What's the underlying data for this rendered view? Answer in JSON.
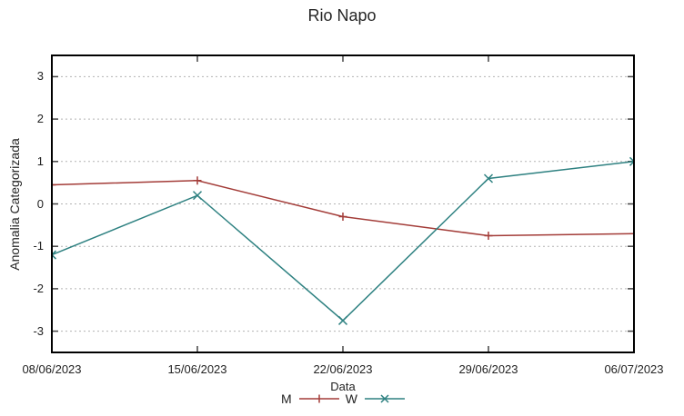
{
  "title": "Rio Napo",
  "chart_data": {
    "type": "line",
    "title": "Rio Napo",
    "xlabel": "Data",
    "ylabel": "Anomalia Categorizada",
    "x": [
      "08/06/2023",
      "15/06/2023",
      "22/06/2023",
      "29/06/2023",
      "06/07/2023"
    ],
    "ylim": [
      -3.5,
      3.5
    ],
    "yticks": [
      3,
      2,
      1,
      0,
      -1,
      -2,
      -3
    ],
    "grid": "horizontal dashed gridlines at integer y values",
    "legend_position": "bottom-center",
    "series": [
      {
        "name": "M",
        "marker": "plus",
        "color": "#a33c38",
        "values": [
          0.45,
          0.55,
          -0.3,
          -0.75,
          -0.7
        ]
      },
      {
        "name": "W",
        "marker": "cross",
        "color": "#2e8181",
        "values": [
          -1.2,
          0.2,
          -2.75,
          0.6,
          1.0
        ]
      }
    ]
  },
  "colors": {
    "axis_border": "#000000",
    "tick": "#444444",
    "gridline": "#b3b3b3",
    "text": "#222222",
    "background": "#ffffff"
  }
}
